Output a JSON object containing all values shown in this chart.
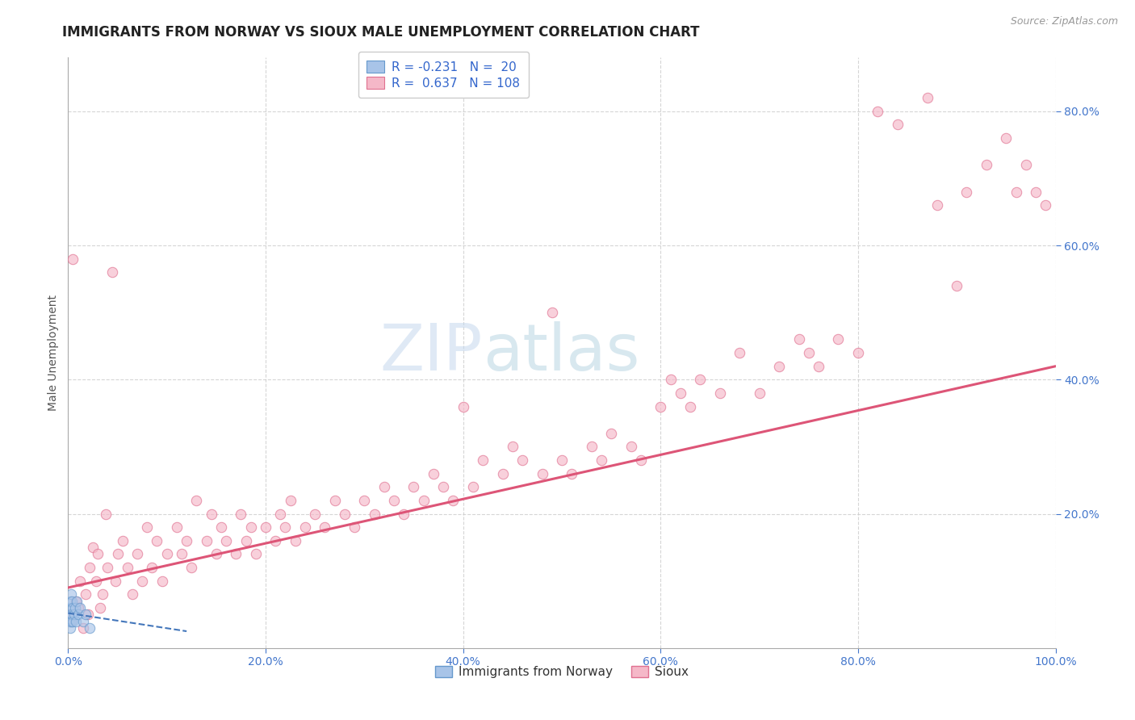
{
  "title": "IMMIGRANTS FROM NORWAY VS SIOUX MALE UNEMPLOYMENT CORRELATION CHART",
  "source": "Source: ZipAtlas.com",
  "ylabel": "Male Unemployment",
  "watermark_left": "ZIP",
  "watermark_right": "atlas",
  "legend_r_norway": "-0.231",
  "legend_n_norway": "20",
  "legend_r_sioux": "0.637",
  "legend_n_sioux": "108",
  "norway_color": "#a8c4e8",
  "sioux_color": "#f5b8c8",
  "norway_edge_color": "#6699cc",
  "sioux_edge_color": "#e07090",
  "norway_line_color": "#4477bb",
  "sioux_line_color": "#dd5577",
  "background_color": "#ffffff",
  "grid_color": "#cccccc",
  "tick_color": "#4477cc",
  "title_color": "#222222",
  "ylabel_color": "#555555",
  "xlim": [
    0.0,
    1.0
  ],
  "ylim": [
    0.0,
    0.88
  ],
  "xtick_vals": [
    0.0,
    0.2,
    0.4,
    0.6,
    0.8,
    1.0
  ],
  "ytick_vals": [
    0.2,
    0.4,
    0.6,
    0.8
  ],
  "norway_x": [
    0.001,
    0.001,
    0.002,
    0.002,
    0.003,
    0.003,
    0.003,
    0.004,
    0.004,
    0.005,
    0.005,
    0.006,
    0.007,
    0.008,
    0.009,
    0.01,
    0.012,
    0.015,
    0.018,
    0.022
  ],
  "norway_y": [
    0.04,
    0.06,
    0.03,
    0.07,
    0.05,
    0.04,
    0.08,
    0.05,
    0.07,
    0.04,
    0.06,
    0.05,
    0.06,
    0.04,
    0.07,
    0.05,
    0.06,
    0.04,
    0.05,
    0.03
  ],
  "sioux_x": [
    0.001,
    0.003,
    0.005,
    0.008,
    0.01,
    0.012,
    0.015,
    0.018,
    0.02,
    0.022,
    0.025,
    0.028,
    0.03,
    0.032,
    0.035,
    0.038,
    0.04,
    0.045,
    0.048,
    0.05,
    0.055,
    0.06,
    0.065,
    0.07,
    0.075,
    0.08,
    0.085,
    0.09,
    0.095,
    0.1,
    0.11,
    0.115,
    0.12,
    0.125,
    0.13,
    0.14,
    0.145,
    0.15,
    0.155,
    0.16,
    0.17,
    0.175,
    0.18,
    0.185,
    0.19,
    0.2,
    0.21,
    0.215,
    0.22,
    0.225,
    0.23,
    0.24,
    0.25,
    0.26,
    0.27,
    0.28,
    0.29,
    0.3,
    0.31,
    0.32,
    0.33,
    0.34,
    0.35,
    0.36,
    0.37,
    0.38,
    0.39,
    0.4,
    0.41,
    0.42,
    0.44,
    0.45,
    0.46,
    0.48,
    0.49,
    0.5,
    0.51,
    0.53,
    0.54,
    0.55,
    0.57,
    0.58,
    0.6,
    0.61,
    0.62,
    0.63,
    0.64,
    0.66,
    0.68,
    0.7,
    0.72,
    0.74,
    0.75,
    0.76,
    0.78,
    0.8,
    0.82,
    0.84,
    0.87,
    0.88,
    0.9,
    0.91,
    0.93,
    0.95,
    0.96,
    0.97,
    0.98,
    0.99
  ],
  "sioux_y": [
    0.05,
    0.04,
    0.58,
    0.07,
    0.06,
    0.1,
    0.03,
    0.08,
    0.05,
    0.12,
    0.15,
    0.1,
    0.14,
    0.06,
    0.08,
    0.2,
    0.12,
    0.56,
    0.1,
    0.14,
    0.16,
    0.12,
    0.08,
    0.14,
    0.1,
    0.18,
    0.12,
    0.16,
    0.1,
    0.14,
    0.18,
    0.14,
    0.16,
    0.12,
    0.22,
    0.16,
    0.2,
    0.14,
    0.18,
    0.16,
    0.14,
    0.2,
    0.16,
    0.18,
    0.14,
    0.18,
    0.16,
    0.2,
    0.18,
    0.22,
    0.16,
    0.18,
    0.2,
    0.18,
    0.22,
    0.2,
    0.18,
    0.22,
    0.2,
    0.24,
    0.22,
    0.2,
    0.24,
    0.22,
    0.26,
    0.24,
    0.22,
    0.36,
    0.24,
    0.28,
    0.26,
    0.3,
    0.28,
    0.26,
    0.5,
    0.28,
    0.26,
    0.3,
    0.28,
    0.32,
    0.3,
    0.28,
    0.36,
    0.4,
    0.38,
    0.36,
    0.4,
    0.38,
    0.44,
    0.38,
    0.42,
    0.46,
    0.44,
    0.42,
    0.46,
    0.44,
    0.8,
    0.78,
    0.82,
    0.66,
    0.54,
    0.68,
    0.72,
    0.76,
    0.68,
    0.72,
    0.68,
    0.66
  ],
  "sioux_line_x": [
    0.0,
    1.0
  ],
  "sioux_line_y": [
    0.09,
    0.42
  ],
  "norway_line_x": [
    0.0,
    0.12
  ],
  "norway_line_y": [
    0.052,
    0.025
  ],
  "marker_size": 80,
  "marker_alpha": 0.65,
  "title_fontsize": 12,
  "axis_label_fontsize": 10,
  "tick_fontsize": 10,
  "legend_fontsize": 11,
  "source_fontsize": 9
}
